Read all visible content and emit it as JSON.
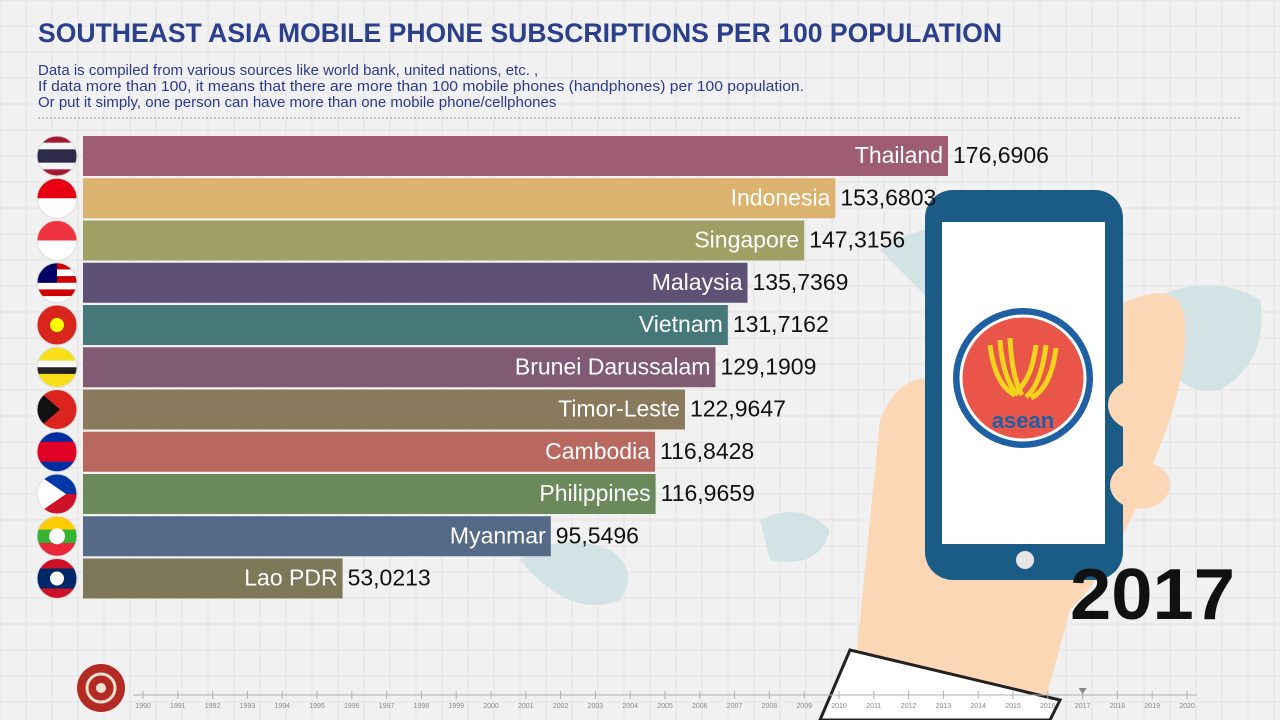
{
  "chart_data": {
    "type": "bar",
    "orientation": "horizontal",
    "title": "SOUTHEAST ASIA MOBILE PHONE SUBSCRIPTIONS PER 100 POPULATION",
    "subtitle": [
      "Data is compiled from various sources like world bank, united nations, etc. ,",
      "If data more than 100, it means that there are more than 100 mobile phones (handphones) per 100 population.",
      "Or put it simply, one person can have more than one mobile phone/cellphones"
    ],
    "categories": [
      "Thailand",
      "Indonesia",
      "Singapore",
      "Malaysia",
      "Vietnam",
      "Brunei Darussalam",
      "Timor-Leste",
      "Cambodia",
      "Philippines",
      "Myanmar",
      "Lao PDR"
    ],
    "values": [
      176.6906,
      153.6803,
      147.3156,
      135.7369,
      131.7162,
      129.1909,
      122.9647,
      116.8428,
      116.9659,
      95.5496,
      53.0213
    ],
    "value_labels": [
      "176,6906",
      "153,6803",
      "147,3156",
      "135,7369",
      "131,7162",
      "129,1909",
      "122,9647",
      "116,8428",
      "116,9659",
      "95,5496",
      "53,0213"
    ],
    "colors": [
      "#9e5d72",
      "#dcb26f",
      "#a0a064",
      "#5f5175",
      "#46787a",
      "#815a74",
      "#8a7a5d",
      "#b8685e",
      "#6a8a5c",
      "#546a86",
      "#7d7858"
    ],
    "year": 2017,
    "timeline": [
      1990,
      1991,
      1992,
      1993,
      1994,
      1995,
      1996,
      1997,
      1998,
      1999,
      2000,
      2001,
      2002,
      2003,
      2004,
      2005,
      2006,
      2007,
      2008,
      2009,
      2010,
      2011,
      2012,
      2013,
      2014,
      2015,
      2016,
      2017,
      2018,
      2019,
      2020
    ],
    "logo_text": "asean"
  }
}
